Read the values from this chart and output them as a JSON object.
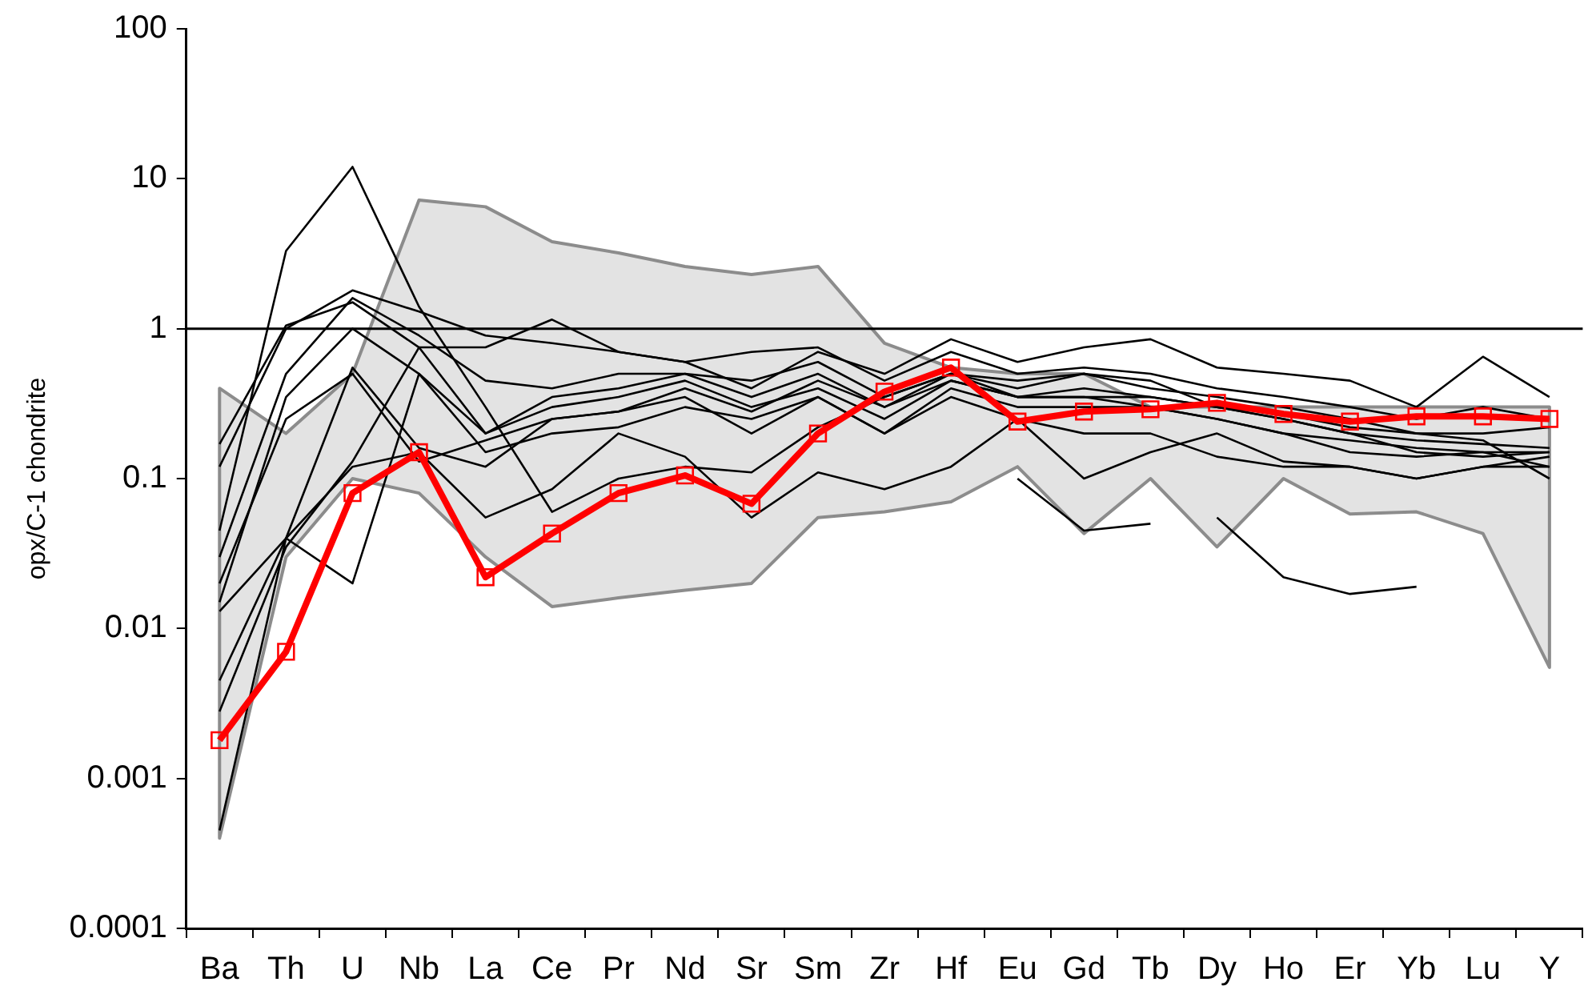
{
  "chart_data": {
    "type": "line",
    "ylabel": "opx/C-1 chondrite",
    "categories": [
      "Ba",
      "Th",
      "U",
      "Nb",
      "La",
      "Ce",
      "Pr",
      "Nd",
      "Sr",
      "Sm",
      "Zr",
      "Hf",
      "Eu",
      "Gd",
      "Tb",
      "Dy",
      "Ho",
      "Er",
      "Yb",
      "Lu",
      "Y"
    ],
    "log": "y",
    "ylim": [
      0.0001,
      100
    ],
    "yticks": [
      0.0001,
      0.001,
      0.01,
      0.1,
      1,
      10,
      100
    ],
    "grid": false,
    "legend": false,
    "ref_lines": [
      {
        "axis": "y",
        "value": 1,
        "color": "#000000",
        "line_style": "solid"
      }
    ],
    "series": [
      {
        "type": "area",
        "color": "#8c8c8c",
        "values": [
          null,
          null,
          null,
          null,
          null,
          null,
          null,
          null,
          null,
          null,
          null,
          null,
          null,
          null,
          null,
          null,
          null,
          null,
          null,
          null,
          null
        ],
        "upper": [
          0.4,
          0.2,
          0.5,
          7.2,
          6.5,
          3.8,
          3.2,
          2.6,
          2.3,
          2.6,
          0.8,
          0.55,
          0.5,
          0.5,
          0.3,
          0.3,
          0.3,
          0.3,
          0.3,
          0.3,
          0.3
        ],
        "lower": [
          0.0004,
          0.03,
          0.1,
          0.08,
          0.03,
          0.014,
          0.016,
          0.018,
          0.02,
          0.055,
          0.06,
          0.07,
          0.12,
          0.043,
          0.1,
          0.035,
          0.1,
          0.058,
          0.06,
          0.043,
          0.0055
        ]
      },
      {
        "color": "#000000",
        "marker": "none",
        "values": [
          0.045,
          3.3,
          12,
          1.4,
          0.3,
          0.06,
          0.1,
          0.12,
          0.11,
          0.22,
          0.35,
          0.5,
          0.4,
          0.5,
          0.45,
          0.3,
          0.25,
          0.2,
          0.15,
          0.14,
          0.15
        ]
      },
      {
        "color": "#000000",
        "marker": "none",
        "values": [
          0.12,
          1.0,
          1.8,
          1.3,
          0.9,
          0.8,
          0.7,
          0.6,
          0.4,
          0.7,
          0.5,
          0.85,
          0.6,
          0.75,
          0.85,
          0.55,
          0.5,
          0.45,
          0.3,
          0.65,
          0.35
        ]
      },
      {
        "color": "#000000",
        "marker": "none",
        "values": [
          0.17,
          1.05,
          1.5,
          0.75,
          0.75,
          1.15,
          0.7,
          0.6,
          0.7,
          0.75,
          0.45,
          0.7,
          0.5,
          0.55,
          0.5,
          0.4,
          0.35,
          0.3,
          0.25,
          0.3,
          0.25
        ]
      },
      {
        "color": "#000000",
        "marker": "none",
        "values": [
          0.03,
          0.5,
          1.6,
          0.9,
          0.45,
          0.4,
          0.5,
          0.5,
          0.35,
          0.5,
          0.3,
          0.5,
          0.45,
          0.5,
          0.4,
          0.35,
          0.3,
          0.25,
          0.2,
          0.2,
          0.22
        ]
      },
      {
        "color": "#000000",
        "marker": "none",
        "values": [
          0.015,
          0.35,
          1.0,
          0.5,
          0.2,
          0.3,
          0.35,
          0.45,
          0.3,
          0.4,
          0.25,
          0.45,
          0.35,
          0.35,
          0.35,
          0.3,
          0.25,
          0.2,
          0.18,
          0.17,
          0.16
        ]
      },
      {
        "color": "#000000",
        "marker": "none",
        "values": [
          0.02,
          0.25,
          0.5,
          0.13,
          0.18,
          0.25,
          0.28,
          0.35,
          0.2,
          0.35,
          0.2,
          0.4,
          0.3,
          0.3,
          0.3,
          0.25,
          0.2,
          0.15,
          0.14,
          0.15,
          0.15
        ]
      },
      {
        "color": "#000000",
        "marker": "none",
        "values": [
          0.013,
          0.04,
          0.12,
          0.15,
          0.055,
          0.085,
          0.2,
          0.14,
          0.055,
          0.11,
          0.085,
          0.12,
          0.25,
          0.1,
          0.15,
          0.2,
          0.13,
          0.12,
          0.1,
          0.12,
          0.14
        ]
      },
      {
        "color": "#000000",
        "marker": "none",
        "values": [
          0.0045,
          0.04,
          0.02,
          0.5,
          0.15,
          0.2,
          0.22,
          0.3,
          0.25,
          0.35,
          0.2,
          0.35,
          0.25,
          0.2,
          0.2,
          0.14,
          0.12,
          0.12,
          0.1,
          0.12,
          0.12
        ]
      },
      {
        "color": "#000000",
        "marker": "none",
        "values": [
          0.0028,
          0.035,
          0.13,
          0.75,
          0.2,
          0.35,
          0.4,
          0.5,
          0.45,
          0.6,
          0.35,
          0.5,
          0.35,
          0.4,
          0.35,
          0.3,
          0.27,
          0.22,
          0.2,
          0.18,
          0.1
        ]
      },
      {
        "color": "#000000",
        "marker": "none",
        "values": [
          0.00045,
          0.04,
          0.55,
          0.16,
          0.12,
          0.25,
          0.28,
          0.4,
          0.28,
          0.45,
          0.3,
          0.45,
          0.35,
          0.35,
          0.3,
          0.25,
          0.2,
          0.18,
          0.16,
          0.15,
          0.12
        ]
      },
      {
        "color": "#000000",
        "marker": "none",
        "values": [
          null,
          null,
          null,
          null,
          null,
          null,
          null,
          null,
          null,
          null,
          null,
          null,
          0.1,
          0.045,
          0.05,
          null,
          null,
          null,
          null,
          null,
          null
        ]
      },
      {
        "color": "#000000",
        "marker": "none",
        "values": [
          null,
          null,
          null,
          null,
          null,
          null,
          null,
          null,
          null,
          null,
          null,
          null,
          null,
          null,
          null,
          0.055,
          0.022,
          0.017,
          0.019,
          null,
          null
        ]
      },
      {
        "color": "#ff0000",
        "marker": "square",
        "values": [
          0.0018,
          0.007,
          0.08,
          0.15,
          0.022,
          0.043,
          0.08,
          0.105,
          0.068,
          0.2,
          0.38,
          0.55,
          0.24,
          0.28,
          0.29,
          0.32,
          0.27,
          0.24,
          0.26,
          0.26,
          0.25
        ]
      }
    ]
  }
}
